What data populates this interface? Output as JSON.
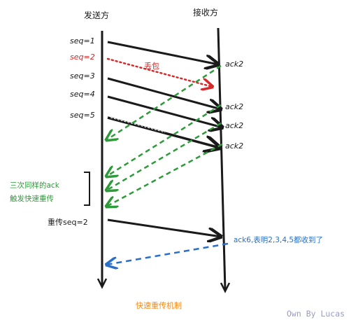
{
  "headers": {
    "sender": "发送方",
    "receiver": "接收方"
  },
  "segments": [
    {
      "seq": "seq=1",
      "ack": "ack2",
      "lost": false
    },
    {
      "seq": "seq=2",
      "ack": "",
      "lost": true,
      "lost_note": "丢包"
    },
    {
      "seq": "seq=3",
      "ack": "ack2",
      "lost": false
    },
    {
      "seq": "seq=4",
      "ack": "ack2",
      "lost": false
    },
    {
      "seq": "seq=5",
      "ack": "ack2",
      "lost": false
    }
  ],
  "dup_ack_note": {
    "line1": "三次同样的ack",
    "line2": "触发快速重传"
  },
  "retransmit": {
    "label": "重传seq=2",
    "ack_note": "ack6,表明2,3,4,5都收到了"
  },
  "caption": "快速重传机制",
  "credit": "Own By Lucas",
  "colors": {
    "ink": "#1a1a1a",
    "lost": "#d62a2a",
    "dup_ack": "#2e9a3a",
    "final_ack": "#2a6fc9",
    "caption": "#f08a1a",
    "credit": "#9a9cc6"
  }
}
